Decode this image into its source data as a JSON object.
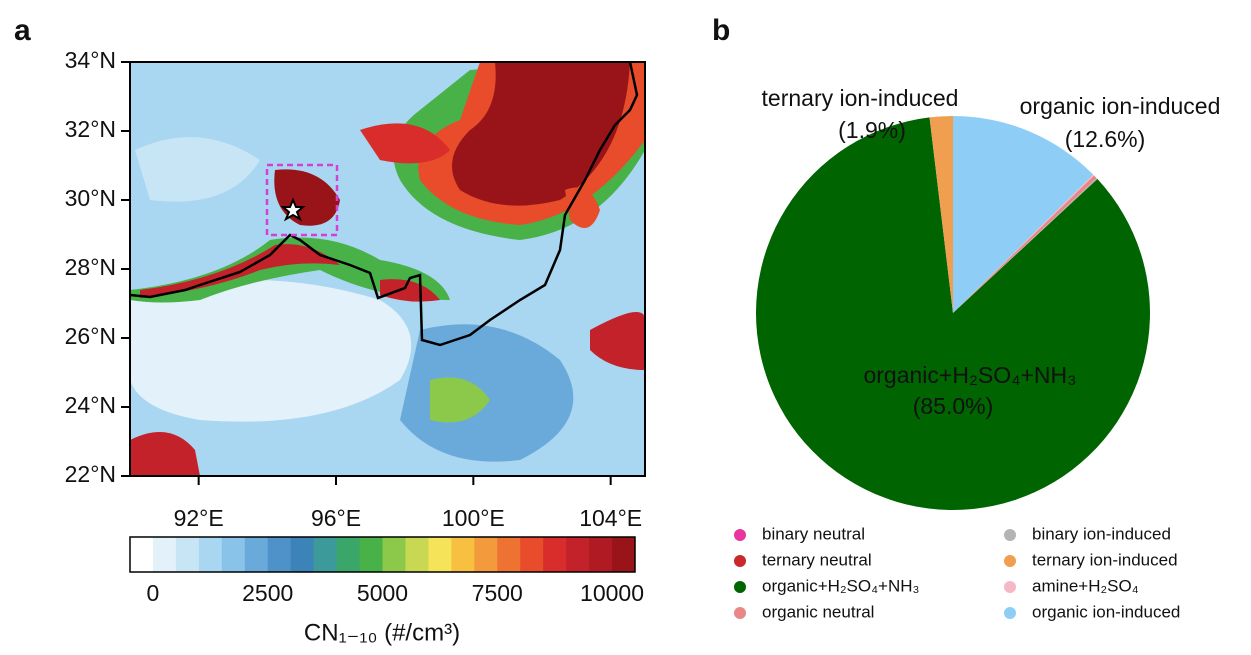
{
  "chart_data": [
    {
      "type": "map",
      "panel_label": "a",
      "xlim": [
        90,
        105
      ],
      "ylim": [
        22,
        34
      ],
      "xticks": [
        {
          "value": 92,
          "label": "92°E"
        },
        {
          "value": 96,
          "label": "96°E"
        },
        {
          "value": 100,
          "label": "100°E"
        },
        {
          "value": 104,
          "label": "104°E"
        }
      ],
      "yticks": [
        {
          "value": 22,
          "label": "22°N"
        },
        {
          "value": 24,
          "label": "24°N"
        },
        {
          "value": 26,
          "label": "26°N"
        },
        {
          "value": 28,
          "label": "28°N"
        },
        {
          "value": 30,
          "label": "30°N"
        },
        {
          "value": 32,
          "label": "32°N"
        },
        {
          "value": 34,
          "label": "34°N"
        }
      ],
      "colorbar": {
        "label": "CN₁₋₁₀ (#/cm³)",
        "lim": [
          -500,
          10500
        ],
        "ticks": [
          0,
          2500,
          5000,
          7500,
          10000
        ],
        "colors": [
          "#ffffff",
          "#e2f1fa",
          "#c8e5f6",
          "#a9d6f1",
          "#8ac3e9",
          "#6aaadb",
          "#4f91c9",
          "#3c84b8",
          "#3c9a9a",
          "#3aa66a",
          "#48b148",
          "#8cc84a",
          "#c9d852",
          "#f5e35a",
          "#f7c040",
          "#f39a3c",
          "#ee7232",
          "#e84c2a",
          "#d82d2a",
          "#c4222a",
          "#b01a22",
          "#991418"
        ]
      }
    },
    {
      "type": "pie",
      "panel_label": "b",
      "categories": [
        "organic ion-induced",
        "amine+H₂SO₄",
        "organic neutral",
        "binary ion-induced",
        "organic+H₂SO₄+NH₃",
        "binary neutral",
        "ternary neutral",
        "ternary ion-induced"
      ],
      "values": [
        12.6,
        0.1,
        0.3,
        0.1,
        85.0,
        0,
        0,
        1.9
      ],
      "value_labels": [
        "(12.6%)",
        null,
        null,
        null,
        "(85.0%)",
        null,
        null,
        "(1.9%)"
      ],
      "colors": [
        "#8ecdf6",
        "#f6b7c6",
        "#e98686",
        "#b4b4b4",
        "#006400",
        "#e8359f",
        "#c9282c",
        "#ef9f4f"
      ]
    }
  ]
}
